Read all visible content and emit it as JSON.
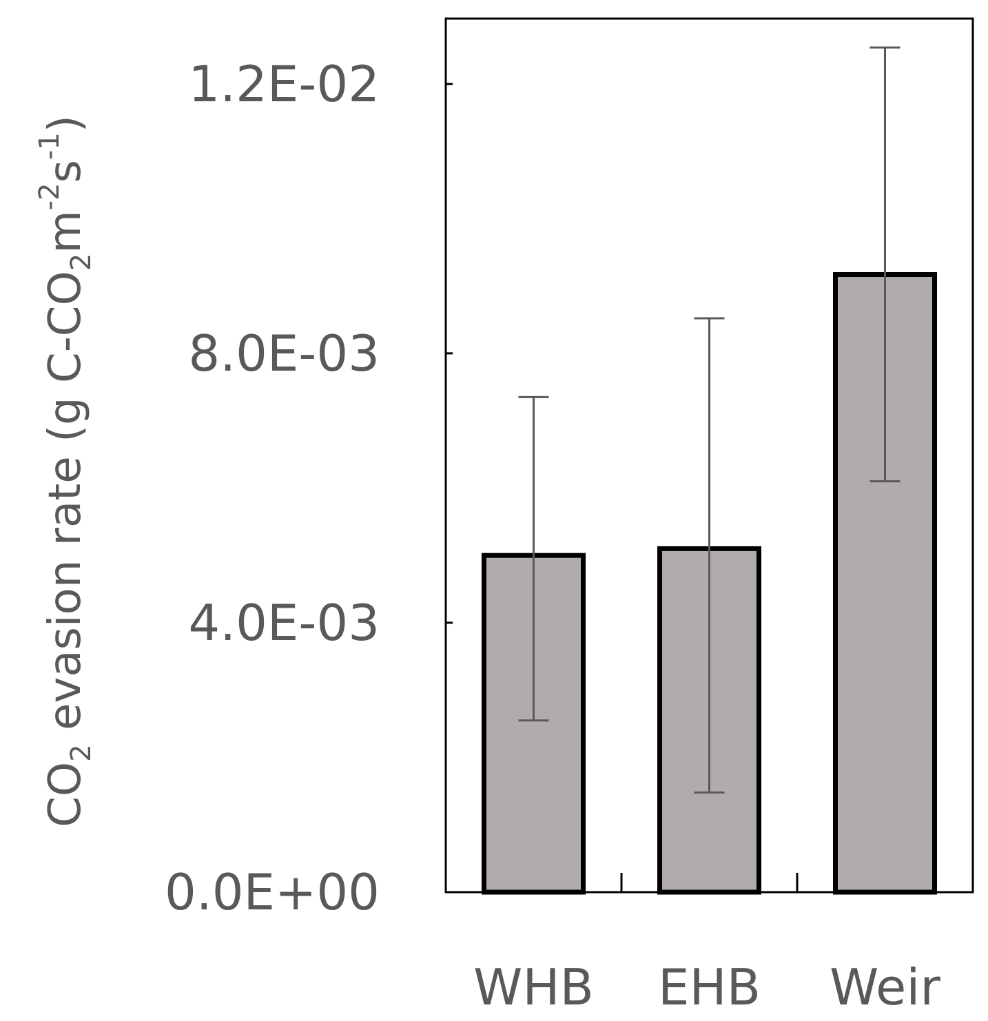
{
  "chart_data": {
    "type": "bar",
    "title": "",
    "xlabel": "",
    "ylabel": {
      "parts": [
        {
          "text": "CO",
          "shift": "normal"
        },
        {
          "text": "2",
          "shift": "sub"
        },
        {
          "text": " evasion rate (g C-CO",
          "shift": "normal"
        },
        {
          "text": "2",
          "shift": "sub"
        },
        {
          "text": "m",
          "shift": "normal"
        },
        {
          "text": "-2",
          "shift": "super"
        },
        {
          "text": "s",
          "shift": "normal"
        },
        {
          "text": "-1",
          "shift": "super"
        },
        {
          "text": ")",
          "shift": "normal"
        }
      ]
    },
    "categories": [
      "WHB",
      "EHB",
      "Weir"
    ],
    "values": [
      0.005,
      0.0051,
      0.00917
    ],
    "error_low": [
      0.00255,
      0.00148,
      0.0061
    ],
    "error_high": [
      0.00735,
      0.00852,
      0.01254
    ],
    "ylim": [
      0,
      0.01297
    ],
    "yticks": [
      0,
      0.004,
      0.008,
      0.012
    ],
    "ytick_labels": [
      "0.0E+00",
      "4.0E-03",
      "8.0E-03",
      "1.2E-02"
    ],
    "grid": false,
    "legend": "none",
    "colors": {
      "bar_fill": "#b0acab",
      "bar_stroke": "#000000",
      "error_bar": "#595959",
      "axis": "#000000",
      "text": "#595959"
    }
  }
}
